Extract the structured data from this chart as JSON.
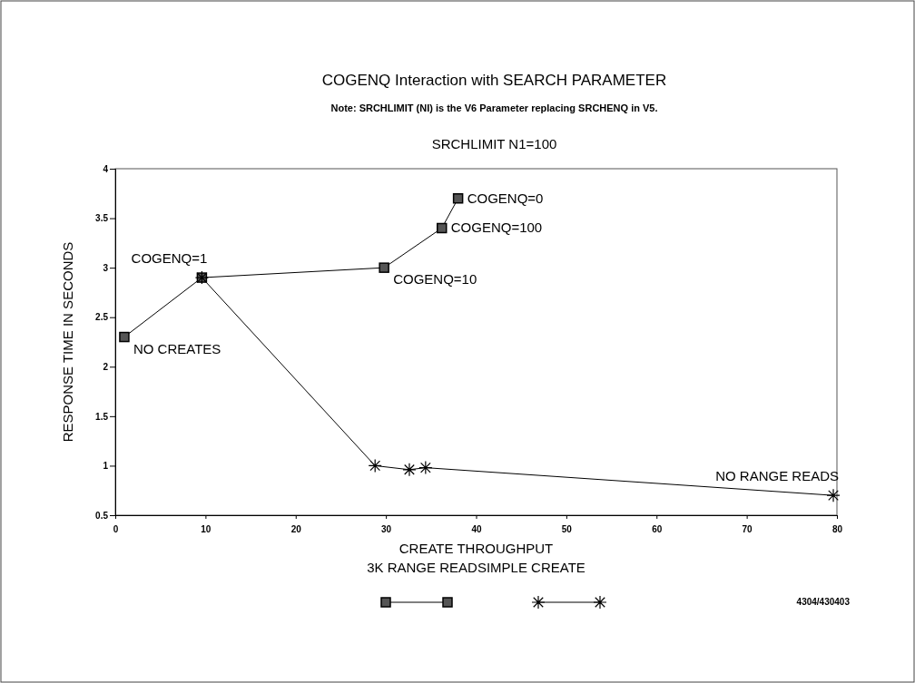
{
  "chart_data": {
    "type": "line",
    "title": "COGENQ Interaction with SEARCH PARAMETER",
    "subtitle": "Note: SRCHLIMIT (NI) is the V6 Parameter replacing SRCHENQ in V5.",
    "xlabel": "CREATE THROUGHPUT\n3K RANGE READSIMPLE CREATE",
    "ylabel": "RESPONSE TIME IN SECONDS",
    "xlim": [
      0,
      80
    ],
    "xticks": [
      0,
      10,
      20,
      30,
      40,
      50,
      60,
      70,
      80
    ],
    "ylim": [
      0.5,
      4
    ],
    "yticks": [
      0.5,
      1,
      1.5,
      2,
      2.5,
      3,
      3.5,
      4
    ],
    "grid": false,
    "line_style": "solid",
    "series": [
      {
        "color": "#000000",
        "marker": "square",
        "x": [
          1.0,
          9.6,
          29.8,
          36.2,
          38.0
        ],
        "values": [
          2.3,
          2.9,
          3.0,
          3.4,
          3.7
        ]
      },
      {
        "color": "#000000",
        "marker": "cross",
        "x": [
          9.6,
          28.8,
          32.6,
          34.4,
          79.6
        ],
        "values": [
          2.9,
          1.0,
          0.96,
          0.98,
          0.7
        ]
      }
    ],
    "annotations": [
      "SRCHLIMIT N1=100",
      "4304/430403",
      {
        "text": "NO CREATES",
        "x": 1.0,
        "y": 2.3
      },
      {
        "text": "COGENQ=1",
        "x": 9.6,
        "y": 2.9
      },
      {
        "text": "COGENQ=10",
        "x": 29.8,
        "y": 3.0
      },
      {
        "text": "COGENQ=100",
        "x": 36.2,
        "y": 3.4
      },
      {
        "text": "COGENQ=0",
        "x": 38.0,
        "y": 3.7
      },
      {
        "text": "NO RANGE READS",
        "x": 79.6,
        "y": 0.7
      }
    ]
  }
}
